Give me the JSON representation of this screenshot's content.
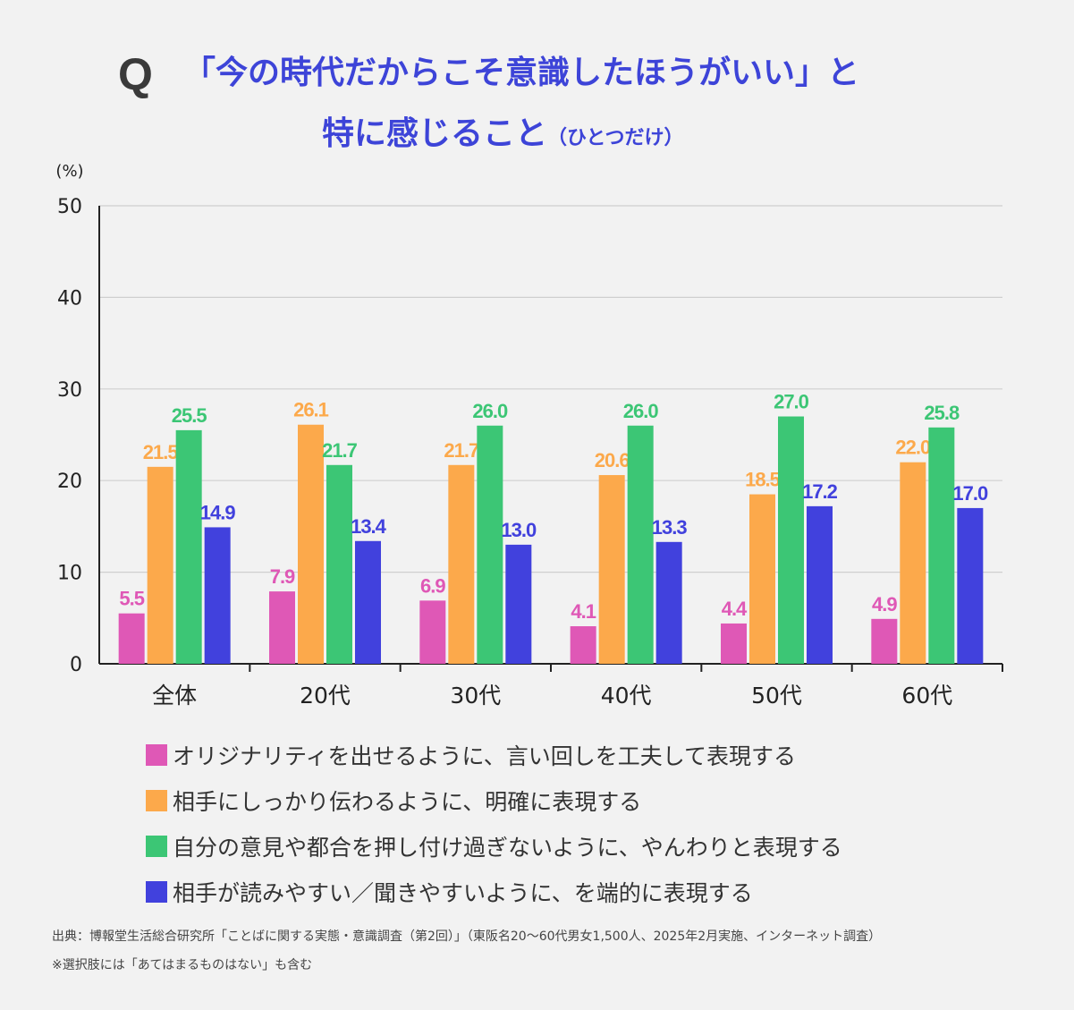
{
  "header": {
    "q_mark": "Q",
    "title_line1": "「今の時代だからこそ意識したほうがいい」と",
    "title_line2_main": "特に感じること",
    "title_line2_sub": "（ひとつだけ）"
  },
  "chart_data": {
    "type": "bar",
    "yunit": "(%)",
    "ylim": [
      0,
      50
    ],
    "yticks": [
      0,
      10,
      20,
      30,
      40,
      50
    ],
    "grid": true,
    "categories": [
      "全体",
      "20代",
      "30代",
      "40代",
      "50代",
      "60代"
    ],
    "series": [
      {
        "name": "オリジナリティを出せるように、言い回しを工夫して表現する",
        "color": "#df58b6",
        "values": [
          5.5,
          7.9,
          6.9,
          4.1,
          4.4,
          4.9
        ]
      },
      {
        "name": "相手にしっかり伝わるように、明確に表現する",
        "color": "#fca94b",
        "values": [
          21.5,
          26.1,
          21.7,
          20.6,
          18.5,
          22.0
        ]
      },
      {
        "name": "自分の意見や都合を押し付け過ぎないように、やんわりと表現する",
        "color": "#3cc675",
        "values": [
          25.5,
          21.7,
          26.0,
          26.0,
          27.0,
          25.8
        ]
      },
      {
        "name": "相手が読みやすい／聞きやすいように、を端的に表現する",
        "color": "#4141dd",
        "values": [
          14.9,
          13.4,
          13.0,
          13.3,
          17.2,
          17.0
        ]
      }
    ],
    "legend_position": "bottom"
  },
  "footer": {
    "source": "出典：博報堂生活総合研究所「ことばに関する実態・意識調査（第2回）」（東阪名20〜60代男女1,500人、2025年2月実施、インターネット調査）",
    "note": "※選択肢には「あてはまるものはない」も含む"
  }
}
